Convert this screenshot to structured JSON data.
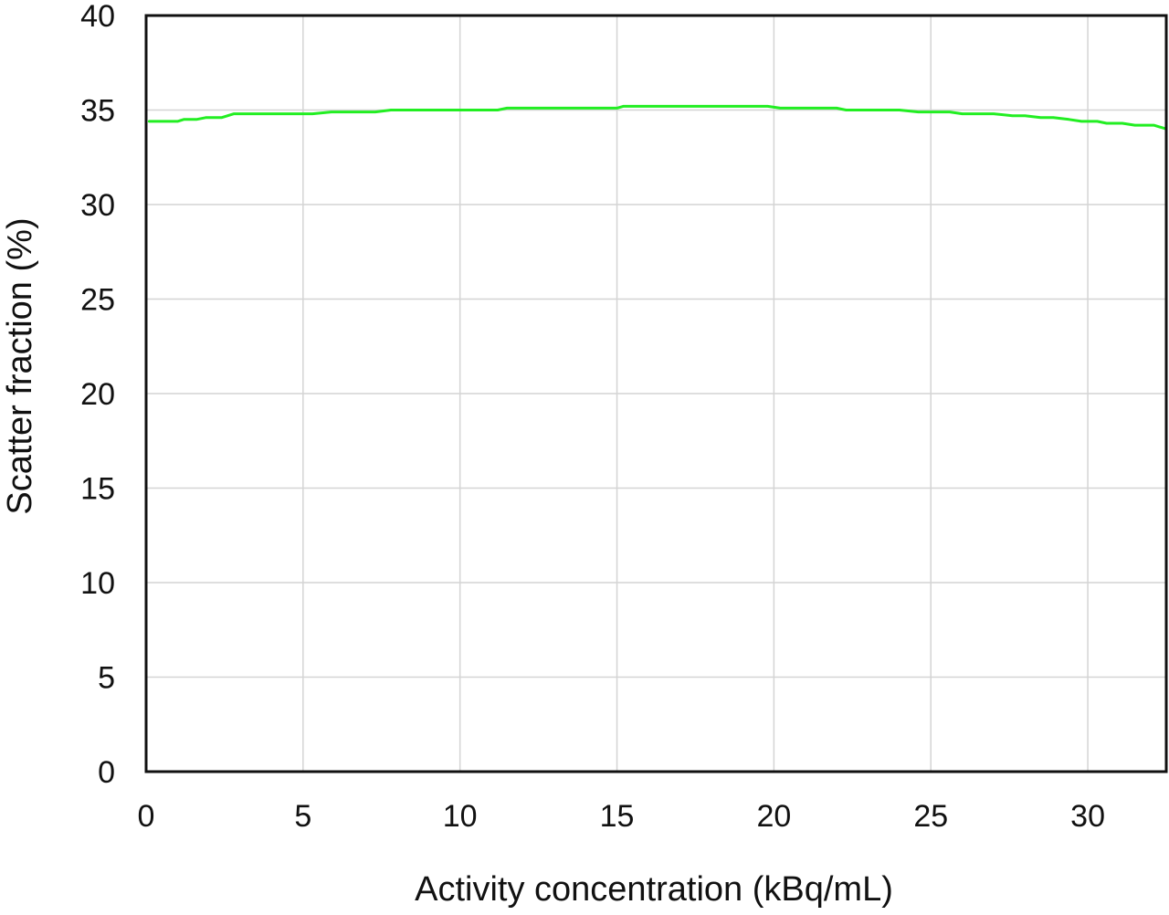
{
  "chart_data": {
    "type": "line",
    "title": "",
    "xlabel": "Activity concentration (kBq/mL)",
    "ylabel": "Scatter fraction (%)",
    "xlim": [
      0,
      32.5
    ],
    "ylim": [
      0,
      40
    ],
    "xticks": [
      0,
      5,
      10,
      15,
      20,
      25,
      30
    ],
    "yticks": [
      0,
      5,
      10,
      15,
      20,
      25,
      30,
      35,
      40
    ],
    "grid": true,
    "legend": "none",
    "series": [
      {
        "color": "#22ee22",
        "x": [
          0.1,
          1.0,
          1.2,
          1.6,
          1.9,
          2.4,
          2.8,
          3.3,
          3.8,
          4.3,
          4.8,
          5.3,
          5.9,
          6.5,
          7.3,
          7.8,
          8.5,
          9.5,
          10.5,
          11.2,
          11.5,
          12.5,
          13.5,
          14.5,
          15.0,
          15.2,
          16.0,
          17.0,
          18.0,
          19.0,
          19.8,
          20.2,
          21.0,
          22.0,
          22.3,
          23.0,
          24.0,
          24.6,
          25.0,
          25.6,
          26.0,
          27.0,
          27.6,
          28.0,
          28.5,
          28.9,
          29.4,
          29.8,
          30.3,
          30.6,
          31.1,
          31.5,
          32.1,
          32.5
        ],
        "y": [
          34.4,
          34.4,
          34.5,
          34.5,
          34.6,
          34.6,
          34.8,
          34.8,
          34.8,
          34.8,
          34.8,
          34.8,
          34.9,
          34.9,
          34.9,
          35.0,
          35.0,
          35.0,
          35.0,
          35.0,
          35.1,
          35.1,
          35.1,
          35.1,
          35.1,
          35.2,
          35.2,
          35.2,
          35.2,
          35.2,
          35.2,
          35.1,
          35.1,
          35.1,
          35.0,
          35.0,
          35.0,
          34.9,
          34.9,
          34.9,
          34.8,
          34.8,
          34.7,
          34.7,
          34.6,
          34.6,
          34.5,
          34.4,
          34.4,
          34.3,
          34.3,
          34.2,
          34.2,
          34.0
        ]
      }
    ]
  },
  "colors": {
    "grid": "#d4d4d4",
    "axis": "#111111"
  }
}
